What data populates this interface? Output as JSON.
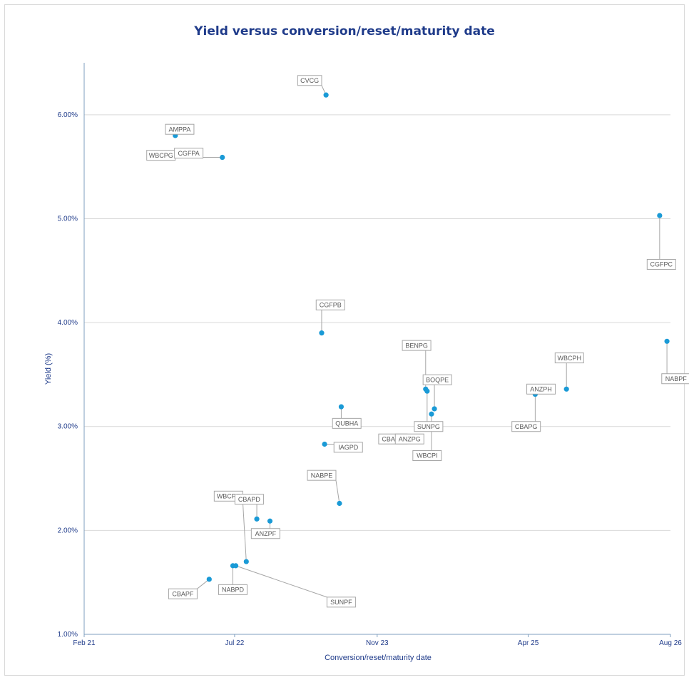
{
  "chart_data": {
    "type": "scatter",
    "title": "Yield versus conversion/reset/maturity date",
    "xlabel": "Conversion/reset/maturity date",
    "ylabel": "Yield (%)",
    "x_range": [
      "2021-02-01",
      "2026-08-01"
    ],
    "x_ticks": [
      {
        "date": "2021-02-01",
        "label": "Feb 21"
      },
      {
        "date": "2022-07-01",
        "label": "Jul 22"
      },
      {
        "date": "2023-11-01",
        "label": "Nov 23"
      },
      {
        "date": "2025-04-01",
        "label": "Apr 25"
      },
      {
        "date": "2026-08-01",
        "label": "Aug 26"
      }
    ],
    "ylim": [
      1.0,
      6.5
    ],
    "y_ticks": [
      {
        "value": 1,
        "label": "1.00%"
      },
      {
        "value": 2,
        "label": "2.00%"
      },
      {
        "value": 3,
        "label": "3.00%"
      },
      {
        "value": 4,
        "label": "4.00%"
      },
      {
        "value": 5,
        "label": "5.00%"
      },
      {
        "value": 6,
        "label": "6.00%"
      }
    ],
    "grid": "horizontal",
    "marker_color": "#1a9ad6",
    "points": [
      {
        "name": "CVCG",
        "date": "2023-05-10",
        "yield": 6.19,
        "label_date": "2023-03-15",
        "label_yield": 6.33
      },
      {
        "name": "AMPPA",
        "date": "2021-12-10",
        "yield": 5.8,
        "label_date": "2021-12-25",
        "label_yield": 5.86
      },
      {
        "name": "WBCPG",
        "date": "2021-12-10",
        "yield": 5.62,
        "label_date": "2021-10-22",
        "label_yield": 5.61
      },
      {
        "name": "CGFPA",
        "date": "2022-05-20",
        "yield": 5.59,
        "label_date": "2022-01-25",
        "label_yield": 5.63
      },
      {
        "name": "CGFPC",
        "date": "2026-06-25",
        "yield": 5.03,
        "label_date": "2026-07-01",
        "label_yield": 4.56
      },
      {
        "name": "CGFPB",
        "date": "2023-04-25",
        "yield": 3.9,
        "label_date": "2023-05-25",
        "label_yield": 4.17
      },
      {
        "name": "NABPF",
        "date": "2026-07-20",
        "yield": 3.82,
        "label_date": "2026-08-20",
        "label_yield": 3.46
      },
      {
        "name": "WBCPH",
        "date": "2025-08-10",
        "yield": 3.36,
        "label_date": "2025-08-20",
        "label_yield": 3.66
      },
      {
        "name": "ANZPH",
        "date": "2025-04-05",
        "yield": 3.37,
        "label_date": "2025-05-15",
        "label_yield": 3.36
      },
      {
        "name": "CBAPG",
        "date": "2025-04-25",
        "yield": 3.31,
        "label_date": "2025-03-25",
        "label_yield": 3.0
      },
      {
        "name": "BENPG",
        "date": "2024-04-15",
        "yield": 3.36,
        "label_date": "2024-03-15",
        "label_yield": 3.78
      },
      {
        "name": "BOQPE",
        "date": "2024-05-15",
        "yield": 3.17,
        "label_date": "2024-05-25",
        "label_yield": 3.45
      },
      {
        "name": "SUNPG",
        "date": "2024-04-20",
        "yield": 3.34,
        "label_date": "2024-04-25",
        "label_yield": 3.0
      },
      {
        "name": "WBCPI",
        "date": "2024-05-05",
        "yield": 3.12,
        "label_date": "2024-04-20",
        "label_yield": 2.72
      },
      {
        "name": "QUBHA",
        "date": "2023-07-01",
        "yield": 3.19,
        "label_date": "2023-07-20",
        "label_yield": 3.03
      },
      {
        "name": "CBAPH",
        "date": "2024-01-20",
        "yield": 2.88,
        "label_date": "2023-12-25",
        "label_yield": 2.88
      },
      {
        "name": "ANZPG",
        "date": "2024-01-25",
        "yield": 2.88,
        "label_date": "2024-02-20",
        "label_yield": 2.88
      },
      {
        "name": "IAGPD",
        "date": "2023-05-05",
        "yield": 2.83,
        "label_date": "2023-07-25",
        "label_yield": 2.8
      },
      {
        "name": "NABPE",
        "date": "2023-06-25",
        "yield": 2.26,
        "label_date": "2023-04-25",
        "label_yield": 2.53
      },
      {
        "name": "WBCPE",
        "date": "2022-08-10",
        "yield": 1.7,
        "label_date": "2022-06-10",
        "label_yield": 2.33
      },
      {
        "name": "CBAPD",
        "date": "2022-09-15",
        "yield": 2.11,
        "label_date": "2022-08-20",
        "label_yield": 2.3
      },
      {
        "name": "ANZPF",
        "date": "2022-10-30",
        "yield": 2.09,
        "label_date": "2022-10-15",
        "label_yield": 1.97
      },
      {
        "name": "NABPD",
        "date": "2022-06-25",
        "yield": 1.66,
        "label_date": "2022-06-25",
        "label_yield": 1.43
      },
      {
        "name": "CBAPF",
        "date": "2022-04-05",
        "yield": 1.53,
        "label_date": "2022-01-05",
        "label_yield": 1.39
      },
      {
        "name": "SUNPF",
        "date": "2022-07-05",
        "yield": 1.66,
        "label_date": "2023-07-01",
        "label_yield": 1.31
      }
    ]
  }
}
